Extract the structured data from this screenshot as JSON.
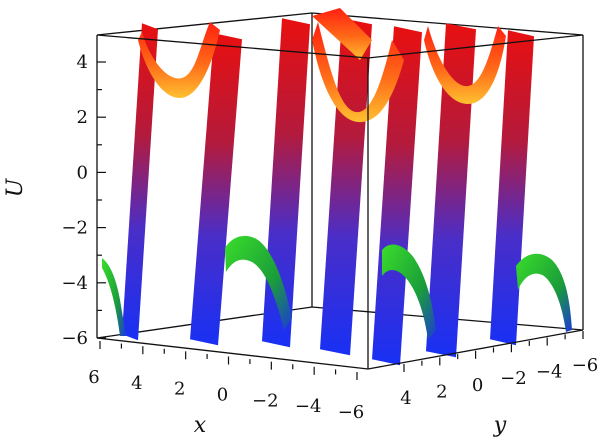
{
  "chart_data": {
    "type": "surface3d",
    "title": "",
    "xlabel": "x",
    "ylabel": "y",
    "zlabel": "U",
    "xlim": [
      -6,
      6
    ],
    "ylim": [
      -6,
      6
    ],
    "zlim": [
      -6,
      5
    ],
    "x_ticks": [
      "6",
      "4",
      "2",
      "0",
      "−2",
      "−4",
      "−6"
    ],
    "y_ticks": [
      "4",
      "2",
      "0",
      "−2",
      "−4",
      "−6"
    ],
    "z_ticks": [
      "4",
      "2",
      "0",
      "−2",
      "−4",
      "−6"
    ],
    "grid": false,
    "legend": "none",
    "colormap": [
      "#1d2cf0",
      "#6a2fb8",
      "#d81818",
      "#ff3a10",
      "#ffb020",
      "#2cc21c"
    ],
    "band_heights": {
      "top": 4.5,
      "bottom": -5.9
    }
  }
}
